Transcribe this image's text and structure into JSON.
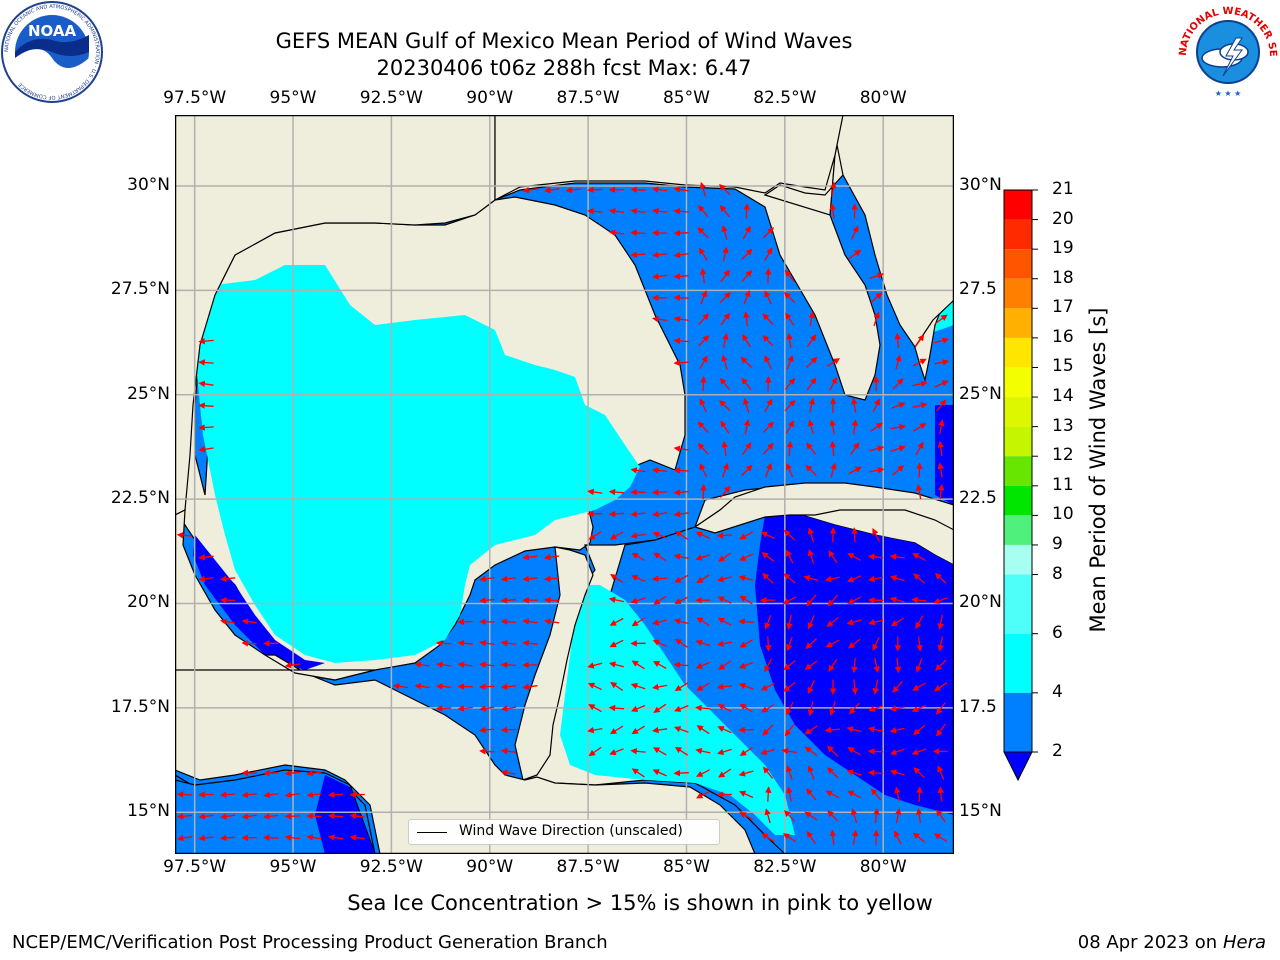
{
  "title": {
    "line1": "GEFS MEAN Gulf of Mexico Mean Period of Wind Waves",
    "line2": "20230406 t06z 288h fcst   Max: 6.47"
  },
  "subtitle": "Sea Ice Concentration > 15% is shown in pink to yellow",
  "footer": {
    "left": "NCEP/EMC/Verification Post Processing Product Generation Branch",
    "date": "08 Apr 2023 on ",
    "host": "Hera"
  },
  "logos": {
    "left": {
      "text": "NOAA",
      "ring": "NATIONAL OCEANIC AND ATMOSPHERIC ADMINISTRATION · U.S. DEPARTMENT OF COMMERCE"
    },
    "right": {
      "ring": "NATIONAL WEATHER SERVICE"
    }
  },
  "legend": {
    "label": "Wind Wave Direction (unscaled)"
  },
  "axes": {
    "lon_labels": [
      "97.5°W",
      "95°W",
      "92.5°W",
      "90°W",
      "87.5°W",
      "85°W",
      "82.5°W",
      "80°W"
    ],
    "lat_labels_left": [
      "30°N",
      "27.5°N",
      "25°N",
      "22.5°N",
      "20°N",
      "17.5°N",
      "15°N"
    ],
    "lat_labels_right": [
      "30°N",
      "27.5",
      "25°N",
      "22.5",
      "20°N",
      "17.5",
      "15°N"
    ],
    "lon_range": [
      -98,
      -78.2
    ],
    "lat_range": [
      14,
      31.7
    ]
  },
  "colorbar": {
    "label": "Mean Period of Wind Waves [s]",
    "ticks": [
      "21",
      "20",
      "19",
      "18",
      "17",
      "16",
      "15",
      "14",
      "13",
      "12",
      "11",
      "10",
      "9",
      "8",
      "6",
      "4",
      "2"
    ],
    "bands": [
      {
        "from": 20,
        "color": "#ff0000"
      },
      {
        "from": 19,
        "color": "#ff2a00"
      },
      {
        "from": 18,
        "color": "#ff5500"
      },
      {
        "from": 17,
        "color": "#ff8000"
      },
      {
        "from": 16,
        "color": "#ffb000"
      },
      {
        "from": 15,
        "color": "#ffe600"
      },
      {
        "from": 14,
        "color": "#f3ff00"
      },
      {
        "from": 13,
        "color": "#ddf700"
      },
      {
        "from": 12,
        "color": "#c6f500"
      },
      {
        "from": 11,
        "color": "#66e600"
      },
      {
        "from": 10,
        "color": "#00e600"
      },
      {
        "from": 9,
        "color": "#50f07c"
      },
      {
        "from": 8,
        "color": "#a6fff0"
      },
      {
        "from": 6,
        "color": "#4dfff8"
      },
      {
        "from": 4,
        "color": "#00ffff"
      },
      {
        "from": 2,
        "color": "#0080ff"
      }
    ],
    "under_color": "#0000ff"
  },
  "map_colors": {
    "land": "#efeddb",
    "period_2_4": "#0080ff",
    "period_4_6": "#00ffff",
    "period_lt_2": "#0000ff",
    "arrow": "#ff0000",
    "grid": "#b0b0b0"
  }
}
